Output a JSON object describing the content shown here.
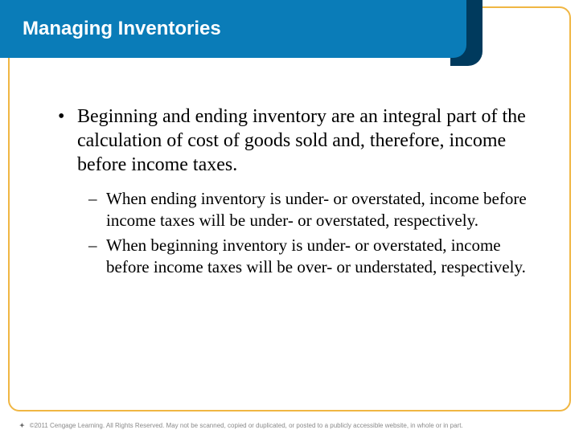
{
  "header": {
    "title": "Managing Inventories",
    "bg_color": "#0a7cb8",
    "accent_color": "#003a5d",
    "title_color": "#ffffff",
    "title_fontsize": 24
  },
  "frame": {
    "border_color": "#f0b643"
  },
  "content": {
    "main_bullet": "Beginning and ending inventory are an integral part of the calculation of cost of goods sold and, therefore, income before income taxes.",
    "sub_bullets": [
      "When ending inventory is under- or overstated, income before income taxes will be under- or overstated, respectively.",
      "When beginning inventory is under- or overstated, income before income taxes will be over- or understated, respectively."
    ],
    "main_fontsize": 24,
    "sub_fontsize": 21,
    "font_family": "Times New Roman"
  },
  "footer": {
    "copyright": "©2011 Cengage Learning. All Rights Reserved. May not be scanned, copied or duplicated, or posted to a publicly accessible website, in whole or in part.",
    "logo_text": "Cengage Learning"
  }
}
